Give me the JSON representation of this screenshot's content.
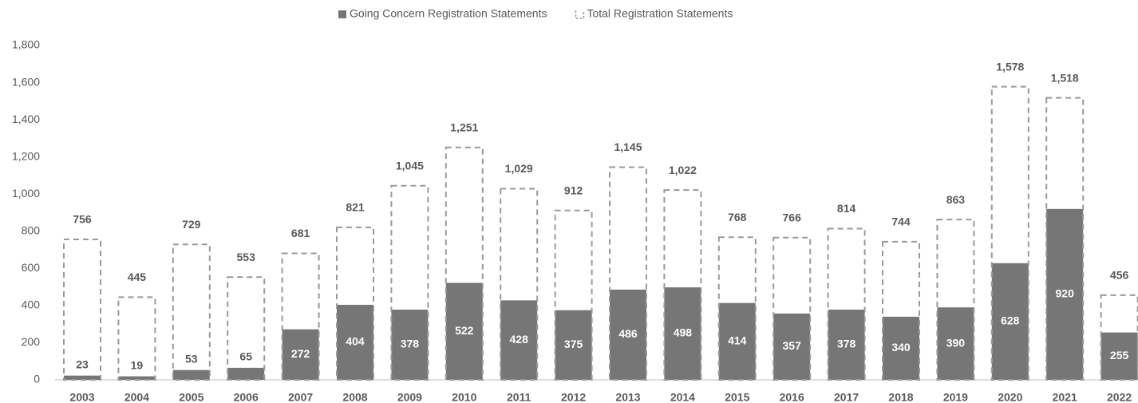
{
  "chart_data": {
    "type": "bar",
    "categories": [
      "2003",
      "2004",
      "2005",
      "2006",
      "2007",
      "2008",
      "2009",
      "2010",
      "2011",
      "2012",
      "2013",
      "2014",
      "2015",
      "2016",
      "2017",
      "2018",
      "2019",
      "2020",
      "2021",
      "2022"
    ],
    "series": [
      {
        "name": "Going Concern Registration Statements",
        "color": "#767676",
        "values": [
          23,
          19,
          53,
          65,
          272,
          404,
          378,
          522,
          428,
          375,
          486,
          498,
          414,
          357,
          378,
          340,
          390,
          628,
          920,
          255
        ]
      },
      {
        "name": "Total Registration Statements",
        "color": "#999999",
        "values": [
          756,
          445,
          729,
          553,
          681,
          821,
          1045,
          1251,
          1029,
          912,
          1145,
          1022,
          768,
          766,
          814,
          744,
          863,
          1578,
          1518,
          456
        ],
        "value_labels": [
          "756",
          "445",
          "729",
          "553",
          "681",
          "821",
          "1,045",
          "1,251",
          "1,029",
          "912",
          "1,145",
          "1,022",
          "768",
          "766",
          "814",
          "744",
          "863",
          "1,578",
          "1,518",
          "456"
        ]
      }
    ],
    "ylim": [
      0,
      1800
    ],
    "yticks": [
      0,
      200,
      400,
      600,
      800,
      {
        "value": 1000,
        "label": "1,000"
      },
      {
        "value": 1200,
        "label": "1,200"
      },
      {
        "value": 1400,
        "label": "1,400"
      },
      {
        "value": 1600,
        "label": "1,600"
      },
      {
        "value": 1800,
        "label": "1,800"
      }
    ],
    "grid": false,
    "legend": "top"
  }
}
